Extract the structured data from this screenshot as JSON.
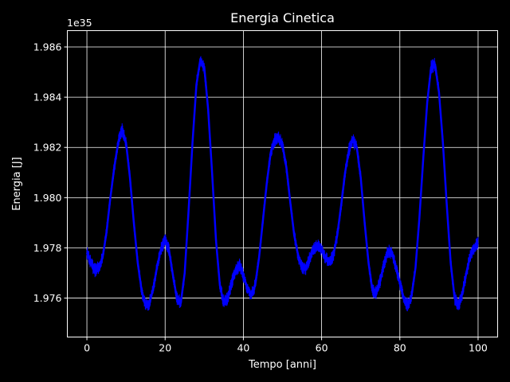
{
  "chart_data": {
    "type": "line",
    "title": "Energia Cinetica",
    "xlabel": "Tempo [anni]",
    "ylabel": "Energia [J]",
    "offset_text": "1e35",
    "scale_exponent": 35,
    "xlim": [
      -5,
      105
    ],
    "ylim": [
      1.97445,
      1.98665
    ],
    "xticks": [
      0,
      20,
      40,
      60,
      80,
      100
    ],
    "xtick_labels": [
      "0",
      "20",
      "40",
      "60",
      "80",
      "100"
    ],
    "yticks": [
      1.976,
      1.978,
      1.98,
      1.982,
      1.984,
      1.986
    ],
    "ytick_labels": [
      "1.976",
      "1.978",
      "1.980",
      "1.982",
      "1.984",
      "1.986"
    ],
    "grid": true,
    "series": [
      {
        "color": "#0000ff",
        "x": [
          0,
          1,
          2,
          3,
          4,
          5,
          6,
          7,
          8,
          9,
          10,
          11,
          12,
          13,
          14,
          15,
          16,
          17,
          18,
          19,
          20,
          21,
          22,
          23,
          24,
          25,
          26,
          27,
          28,
          29,
          30,
          31,
          32,
          33,
          34,
          35,
          36,
          37,
          38,
          39,
          40,
          41,
          42,
          43,
          44,
          45,
          46,
          47,
          48,
          49,
          50,
          51,
          52,
          53,
          54,
          55,
          56,
          57,
          58,
          59,
          60,
          61,
          62,
          63,
          64,
          65,
          66,
          67,
          68,
          69,
          70,
          71,
          72,
          73,
          74,
          75,
          76,
          77,
          78,
          79,
          80,
          81,
          82,
          83,
          84,
          85,
          86,
          87,
          88,
          89,
          90,
          91,
          92,
          93,
          94,
          95,
          96,
          97,
          98,
          99,
          100
        ],
        "y": [
          1.9778,
          1.9774,
          1.9771,
          1.9772,
          1.9776,
          1.9786,
          1.98,
          1.9812,
          1.9822,
          1.9827,
          1.9822,
          1.9808,
          1.979,
          1.9774,
          1.9763,
          1.9757,
          1.9758,
          1.9764,
          1.9773,
          1.978,
          1.9783,
          1.9779,
          1.9769,
          1.976,
          1.9758,
          1.977,
          1.9795,
          1.9822,
          1.9845,
          1.9855,
          1.9852,
          1.9835,
          1.981,
          1.9783,
          1.9765,
          1.9758,
          1.976,
          1.9766,
          1.9771,
          1.9773,
          1.9769,
          1.9764,
          1.9761,
          1.9765,
          1.9776,
          1.9791,
          1.9806,
          1.9818,
          1.9823,
          1.9824,
          1.9821,
          1.9812,
          1.9798,
          1.9785,
          1.9777,
          1.9772,
          1.9772,
          1.9776,
          1.978,
          1.9781,
          1.9779,
          1.9776,
          1.9774,
          1.9777,
          1.9785,
          1.9797,
          1.981,
          1.9819,
          1.9823,
          1.982,
          1.9808,
          1.979,
          1.9774,
          1.9763,
          1.9762,
          1.9767,
          1.9774,
          1.9779,
          1.9778,
          1.9772,
          1.9766,
          1.976,
          1.9757,
          1.9761,
          1.9772,
          1.9792,
          1.9816,
          1.9838,
          1.9852,
          1.9853,
          1.9842,
          1.9822,
          1.9797,
          1.9774,
          1.976,
          1.9757,
          1.9762,
          1.977,
          1.9777,
          1.978,
          1.9782
        ]
      }
    ]
  }
}
